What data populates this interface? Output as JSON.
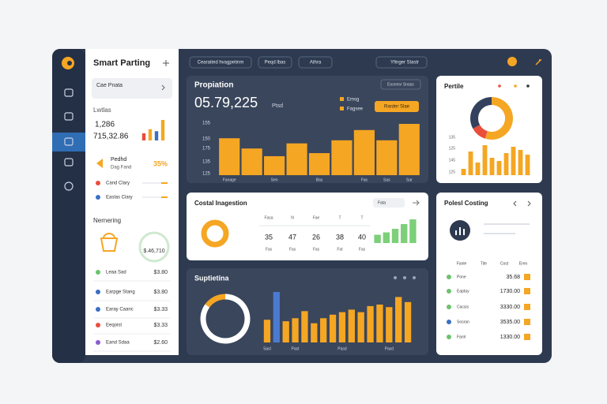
{
  "sidebar": {
    "title": "Smart Parting",
    "search": "Cae Pnata",
    "section1": "Lwtlas",
    "stat1": "1,286",
    "stat2": "715,32.86",
    "mini_bars": {
      "values": [
        35,
        55,
        45,
        100
      ],
      "colors": [
        "#e94e3c",
        "#f5a623",
        "#3a6fc4",
        "#f5a623"
      ]
    },
    "promo": {
      "title": "Pedhd",
      "subtitle": "Dag Fand",
      "value": "35%"
    },
    "links": [
      {
        "label": "Cand Clary",
        "color": "#e94e3c"
      },
      {
        "label": "Easlas Clary",
        "color": "#3a6fc4"
      }
    ],
    "section2": "Nernering",
    "badge": "$.46,710",
    "items": [
      {
        "label": "Leaa Sad",
        "value": "$3.80",
        "color": "#6cc26e"
      },
      {
        "label": "Earpge Stang",
        "value": "$3.80",
        "color": "#3a6fc4"
      },
      {
        "label": "Earay Caanc",
        "value": "$3.33",
        "color": "#3a6fc4"
      },
      {
        "label": "Eeqoist",
        "value": "$3.33",
        "color": "#e94e3c"
      },
      {
        "label": "Eand Sdaa",
        "value": "$2.60",
        "color": "#8a5cd0"
      }
    ]
  },
  "topbar": {
    "buttons": [
      "Cearaited hvagpetinm",
      "Peqd lbas",
      "Athra"
    ],
    "search": "Yfinger Slastr"
  },
  "propiation": {
    "title": "Propiation",
    "value": "05.79,225",
    "unit": "Ptsd",
    "control": "Eosnesr Snass",
    "legend": [
      "Emsg",
      "Fagsee"
    ],
    "button": "Rarder Slae",
    "y_labels": [
      "155",
      "150",
      "175",
      "135",
      "125"
    ],
    "x_labels": [
      "Fanage",
      null,
      "Sen",
      null,
      "Bas",
      null,
      "Fas",
      "Sas",
      "Sar"
    ],
    "values": [
      72,
      52,
      37,
      62,
      43,
      68,
      88,
      68,
      100
    ],
    "color": "#f5a623"
  },
  "pertile": {
    "title": "Pertile",
    "donut": [
      {
        "value": 55,
        "color": "#f5a623"
      },
      {
        "value": 12,
        "color": "#e94e3c"
      },
      {
        "value": 33,
        "color": "#33415c"
      }
    ],
    "y_labels": [
      "135",
      "125",
      "145",
      "125"
    ],
    "values": [
      20,
      75,
      40,
      95,
      55,
      45,
      70,
      90,
      80,
      65
    ],
    "color": "#f5a623"
  },
  "costal": {
    "title": "Costal Inagestion",
    "filter": "Fata",
    "headers": [
      "Fasa",
      "N",
      "Fae",
      "T",
      "T"
    ],
    "values": [
      35,
      47,
      26,
      38,
      40
    ],
    "footers": [
      "Fas",
      "Fas",
      "Fas",
      "Fat",
      "Fas"
    ],
    "green_bars": [
      35,
      45,
      60,
      80,
      100
    ],
    "green_color": "#7dcf7a"
  },
  "polesl": {
    "title": "Polesl Costing",
    "headers": [
      "Fanle",
      "Tite",
      "Cost",
      "Ereo"
    ],
    "rows": [
      {
        "name": "Pone",
        "value": "35.68",
        "color": "#6cc26e"
      },
      {
        "name": "Eaptay",
        "value": "1730.00",
        "color": "#6cc26e"
      },
      {
        "name": "Cacsis",
        "value": "3330.00",
        "color": "#6cc26e"
      },
      {
        "name": "Sosran",
        "value": "3535.00",
        "color": "#3a6fc4"
      },
      {
        "name": "Farol",
        "value": "1330.00",
        "color": "#6cc26e"
      }
    ]
  },
  "suptietina": {
    "title": "Suptietina",
    "donut": [
      {
        "value": 85,
        "color": "#ffffff"
      },
      {
        "value": 15,
        "color": "#f5a623"
      }
    ],
    "values": [
      45,
      100,
      42,
      48,
      62,
      38,
      48,
      55,
      60,
      65,
      60,
      72,
      75,
      70,
      90,
      80
    ],
    "color": "#f5a623",
    "highlight": 1,
    "highlight_color": "#4a7bd0",
    "x_labels": [
      "Sasl",
      null,
      null,
      "Past",
      null,
      null,
      null,
      null,
      "Pasd",
      null,
      null,
      null,
      null,
      "Pasd",
      null,
      null
    ]
  }
}
